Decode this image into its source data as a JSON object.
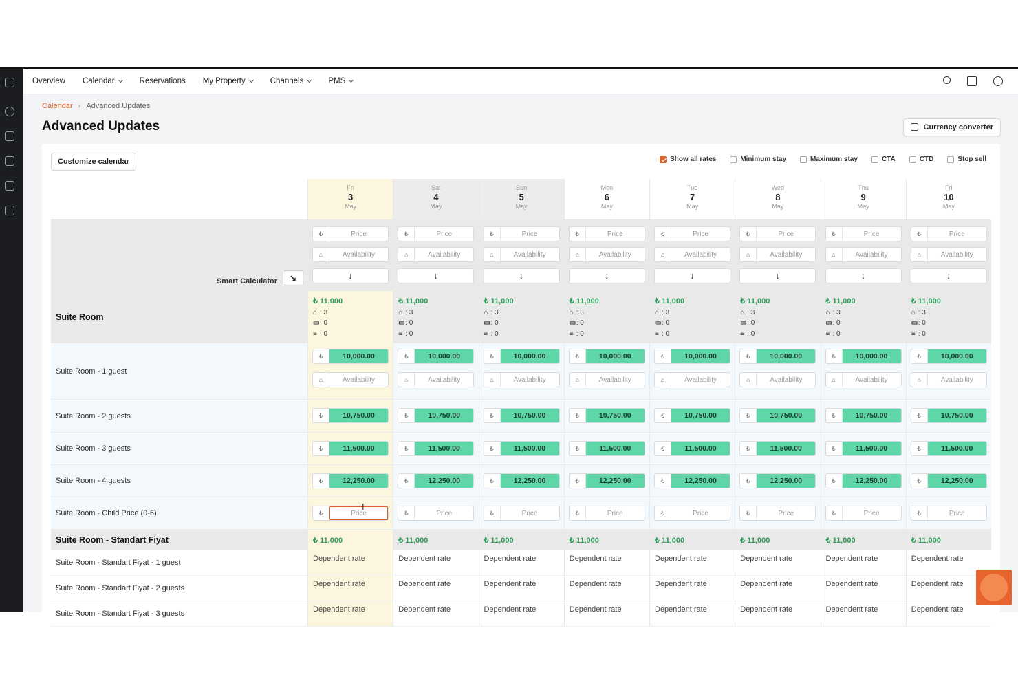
{
  "nav": {
    "items": [
      {
        "label": "Overview",
        "dropdown": false
      },
      {
        "label": "Calendar",
        "dropdown": true
      },
      {
        "label": "Reservations",
        "dropdown": false
      },
      {
        "label": "My Property",
        "dropdown": true
      },
      {
        "label": "Channels",
        "dropdown": true
      },
      {
        "label": "PMS",
        "dropdown": true
      }
    ]
  },
  "breadcrumb": {
    "parent": "Calendar",
    "current": "Advanced Updates"
  },
  "page": {
    "title": "Advanced Updates",
    "currency_button": "Currency converter",
    "customize_button": "Customize calendar"
  },
  "toggles": [
    {
      "label": "Show all rates",
      "checked": true
    },
    {
      "label": "Minimum stay",
      "checked": false
    },
    {
      "label": "Maximum stay",
      "checked": false
    },
    {
      "label": "CTA",
      "checked": false
    },
    {
      "label": "CTD",
      "checked": false
    },
    {
      "label": "Stop sell",
      "checked": false
    }
  ],
  "days": [
    {
      "dow": "Fri",
      "num": "3",
      "month": "May"
    },
    {
      "dow": "Sat",
      "num": "4",
      "month": "May"
    },
    {
      "dow": "Sun",
      "num": "5",
      "month": "May"
    },
    {
      "dow": "Mon",
      "num": "6",
      "month": "May"
    },
    {
      "dow": "Tue",
      "num": "7",
      "month": "May"
    },
    {
      "dow": "Wed",
      "num": "8",
      "month": "May"
    },
    {
      "dow": "Thu",
      "num": "9",
      "month": "May"
    },
    {
      "dow": "Fri",
      "num": "10",
      "month": "May"
    }
  ],
  "smart_calculator": {
    "label": "Smart Calculator",
    "price_placeholder": "Price",
    "availability_placeholder": "Availability",
    "currency_symbol": "₺"
  },
  "room": {
    "name": "Suite Room",
    "summary": {
      "price": "₺ 11,000",
      "avail": ": 3",
      "booked": ": 0",
      "other": ": 0"
    }
  },
  "occupancy_rows": [
    {
      "label": "Suite Room - 1 guest",
      "value": "10,000.00",
      "availability_placeholder": "Availability"
    },
    {
      "label": "Suite Room - 2 guests",
      "value": "10,750.00"
    },
    {
      "label": "Suite Room - 3 guests",
      "value": "11,500.00"
    },
    {
      "label": "Suite Room - 4 guests",
      "value": "12,250.00"
    },
    {
      "label": "Suite Room - Child Price (0-6)",
      "value": "",
      "placeholder": "Price"
    }
  ],
  "rate_plan": {
    "name": "Suite Room - Standart Fiyat",
    "price": "₺ 11,000"
  },
  "dependent_rows": [
    {
      "label": "Suite Room - Standart Fiyat - 1 guest",
      "value": "Dependent rate"
    },
    {
      "label": "Suite Room - Standart Fiyat - 2 guests",
      "value": "Dependent rate"
    },
    {
      "label": "Suite Room - Standart Fiyat - 3 guests",
      "value": "Dependent rate"
    }
  ],
  "colors": {
    "accent": "#d9622b",
    "rate_green": "#5fd6a8",
    "price_green": "#2e9d5b",
    "selected_day": "#fdf6df"
  }
}
